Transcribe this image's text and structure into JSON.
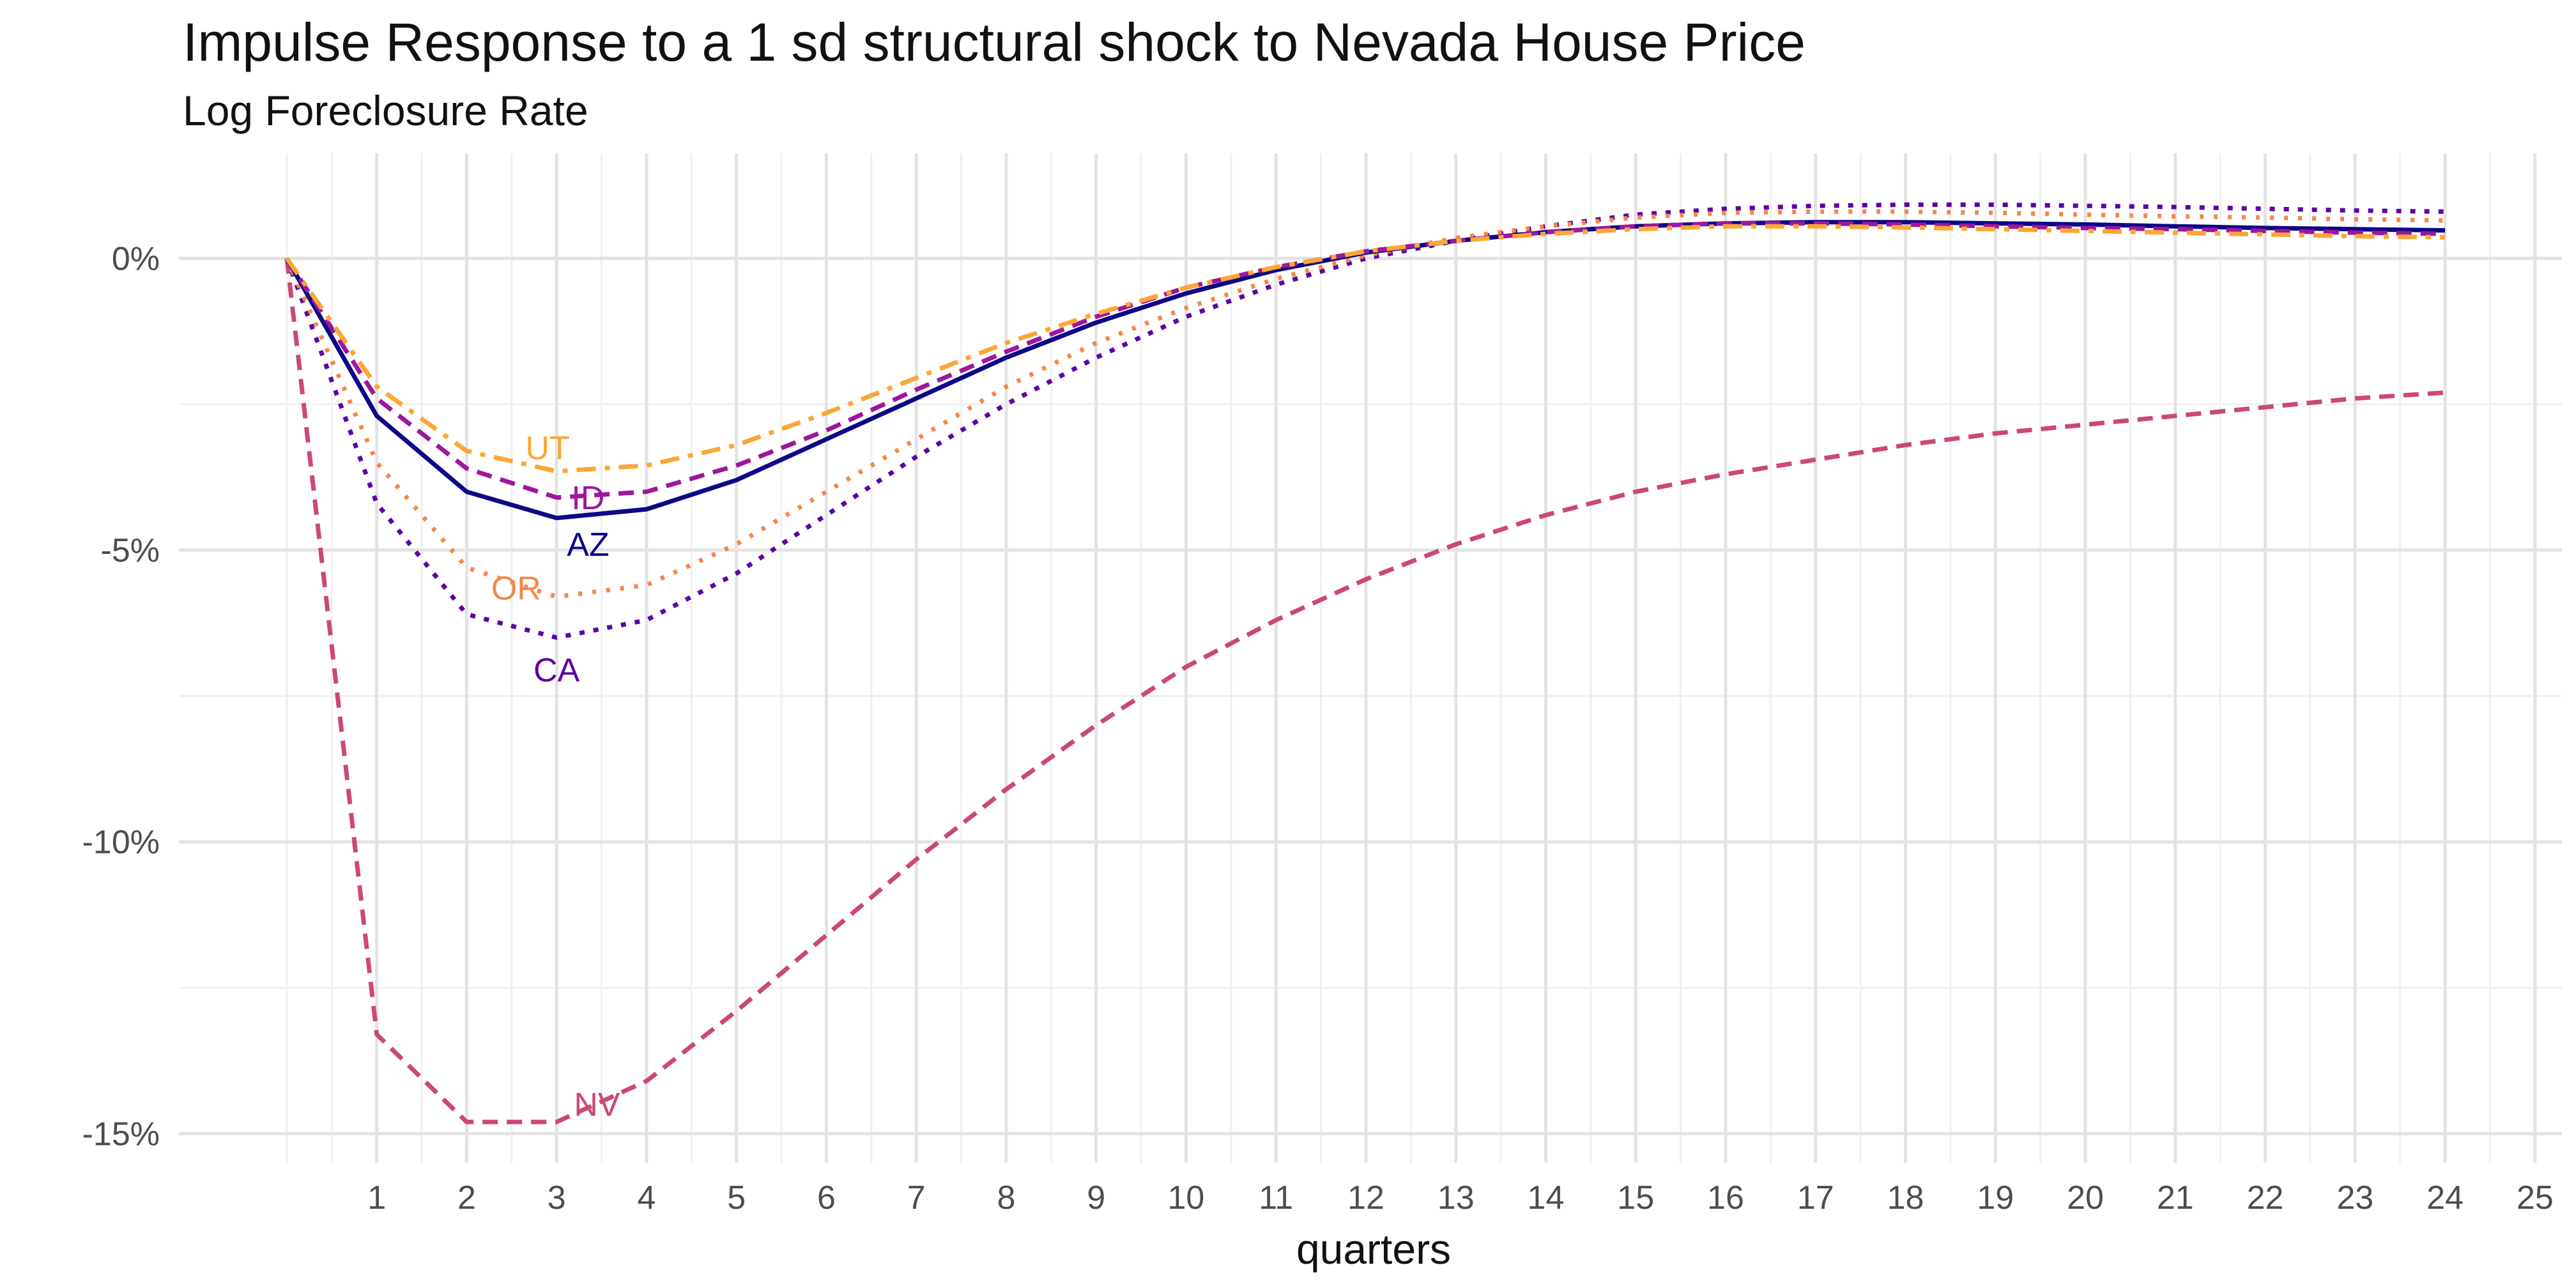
{
  "chart_data": {
    "type": "line",
    "title": "Impulse Response to a 1 sd structural shock to Nevada House Price",
    "subtitle": "Log Foreclosure Rate",
    "xlabel": "quarters",
    "ylabel": "",
    "xlim": [
      -1.2,
      25.3
    ],
    "ylim": [
      -15.5,
      1.8
    ],
    "x_ticks": [
      1,
      2,
      3,
      4,
      5,
      6,
      7,
      8,
      9,
      10,
      11,
      12,
      13,
      14,
      15,
      16,
      17,
      18,
      19,
      20,
      21,
      22,
      23,
      24,
      25
    ],
    "x_tick_labels": [
      "1",
      "2",
      "3",
      "4",
      "5",
      "6",
      "7",
      "8",
      "9",
      "10",
      "11",
      "12",
      "13",
      "14",
      "15",
      "16",
      "17",
      "18",
      "19",
      "20",
      "21",
      "22",
      "23",
      "24",
      "25"
    ],
    "y_ticks": [
      0,
      -5,
      -10,
      -15
    ],
    "y_tick_labels": [
      "0%",
      "-5%",
      "-10%",
      "-15%"
    ],
    "grid": true,
    "legend": "none",
    "x": [
      0,
      1,
      2,
      3,
      4,
      5,
      6,
      7,
      8,
      9,
      10,
      11,
      12,
      13,
      14,
      15,
      16,
      17,
      18,
      19,
      20,
      21,
      22,
      23,
      24
    ],
    "series": [
      {
        "name": "NV",
        "color": "#cc4778",
        "dash": "dashed",
        "values": [
          0,
          -13.3,
          -14.8,
          -14.8,
          -14.1,
          -12.9,
          -11.6,
          -10.3,
          -9.1,
          -8.0,
          -7.0,
          -6.2,
          -5.5,
          -4.9,
          -4.4,
          -4.0,
          -3.7,
          -3.45,
          -3.2,
          -3.0,
          -2.85,
          -2.7,
          -2.55,
          -2.4,
          -2.3
        ],
        "label": "NV",
        "label_at": [
          3.45,
          -14.5
        ]
      },
      {
        "name": "CA",
        "color": "#5c01a6",
        "dash": "dotted",
        "values": [
          0,
          -4.2,
          -6.1,
          -6.5,
          -6.2,
          -5.4,
          -4.4,
          -3.4,
          -2.5,
          -1.7,
          -1.0,
          -0.45,
          0.0,
          0.3,
          0.55,
          0.75,
          0.85,
          0.9,
          0.92,
          0.92,
          0.9,
          0.88,
          0.85,
          0.82,
          0.8
        ],
        "label": "CA",
        "label_at": [
          3.0,
          -7.05
        ]
      },
      {
        "name": "OR",
        "color": "#f48849",
        "dash": "dotted-fine",
        "values": [
          0,
          -3.5,
          -5.3,
          -5.8,
          -5.6,
          -4.9,
          -4.0,
          -3.1,
          -2.2,
          -1.45,
          -0.85,
          -0.35,
          0.05,
          0.35,
          0.55,
          0.7,
          0.78,
          0.8,
          0.8,
          0.78,
          0.75,
          0.72,
          0.7,
          0.67,
          0.65
        ],
        "label": "OR",
        "label_at": [
          2.55,
          -5.65
        ]
      },
      {
        "name": "AZ",
        "color": "#0d0887",
        "dash": "solid",
        "values": [
          0,
          -2.7,
          -4.0,
          -4.45,
          -4.3,
          -3.8,
          -3.1,
          -2.4,
          -1.7,
          -1.1,
          -0.6,
          -0.2,
          0.1,
          0.3,
          0.45,
          0.55,
          0.6,
          0.62,
          0.62,
          0.6,
          0.58,
          0.55,
          0.52,
          0.5,
          0.48
        ],
        "label": "AZ",
        "label_at": [
          3.35,
          -4.9
        ]
      },
      {
        "name": "ID",
        "color": "#9c179e",
        "dash": "dashed",
        "values": [
          0,
          -2.4,
          -3.6,
          -4.1,
          -4.0,
          -3.55,
          -2.95,
          -2.25,
          -1.6,
          -1.0,
          -0.5,
          -0.15,
          0.12,
          0.3,
          0.45,
          0.55,
          0.6,
          0.6,
          0.58,
          0.55,
          0.52,
          0.5,
          0.47,
          0.44,
          0.42
        ],
        "label": "ID",
        "label_at": [
          3.35,
          -4.1
        ]
      },
      {
        "name": "UT",
        "color": "#fca636",
        "dash": "dashdot",
        "values": [
          0,
          -2.2,
          -3.3,
          -3.65,
          -3.55,
          -3.2,
          -2.65,
          -2.05,
          -1.45,
          -0.95,
          -0.5,
          -0.15,
          0.12,
          0.3,
          0.42,
          0.5,
          0.55,
          0.55,
          0.53,
          0.5,
          0.47,
          0.44,
          0.41,
          0.38,
          0.36
        ],
        "label": "UT",
        "label_at": [
          2.9,
          -3.25
        ]
      }
    ]
  }
}
